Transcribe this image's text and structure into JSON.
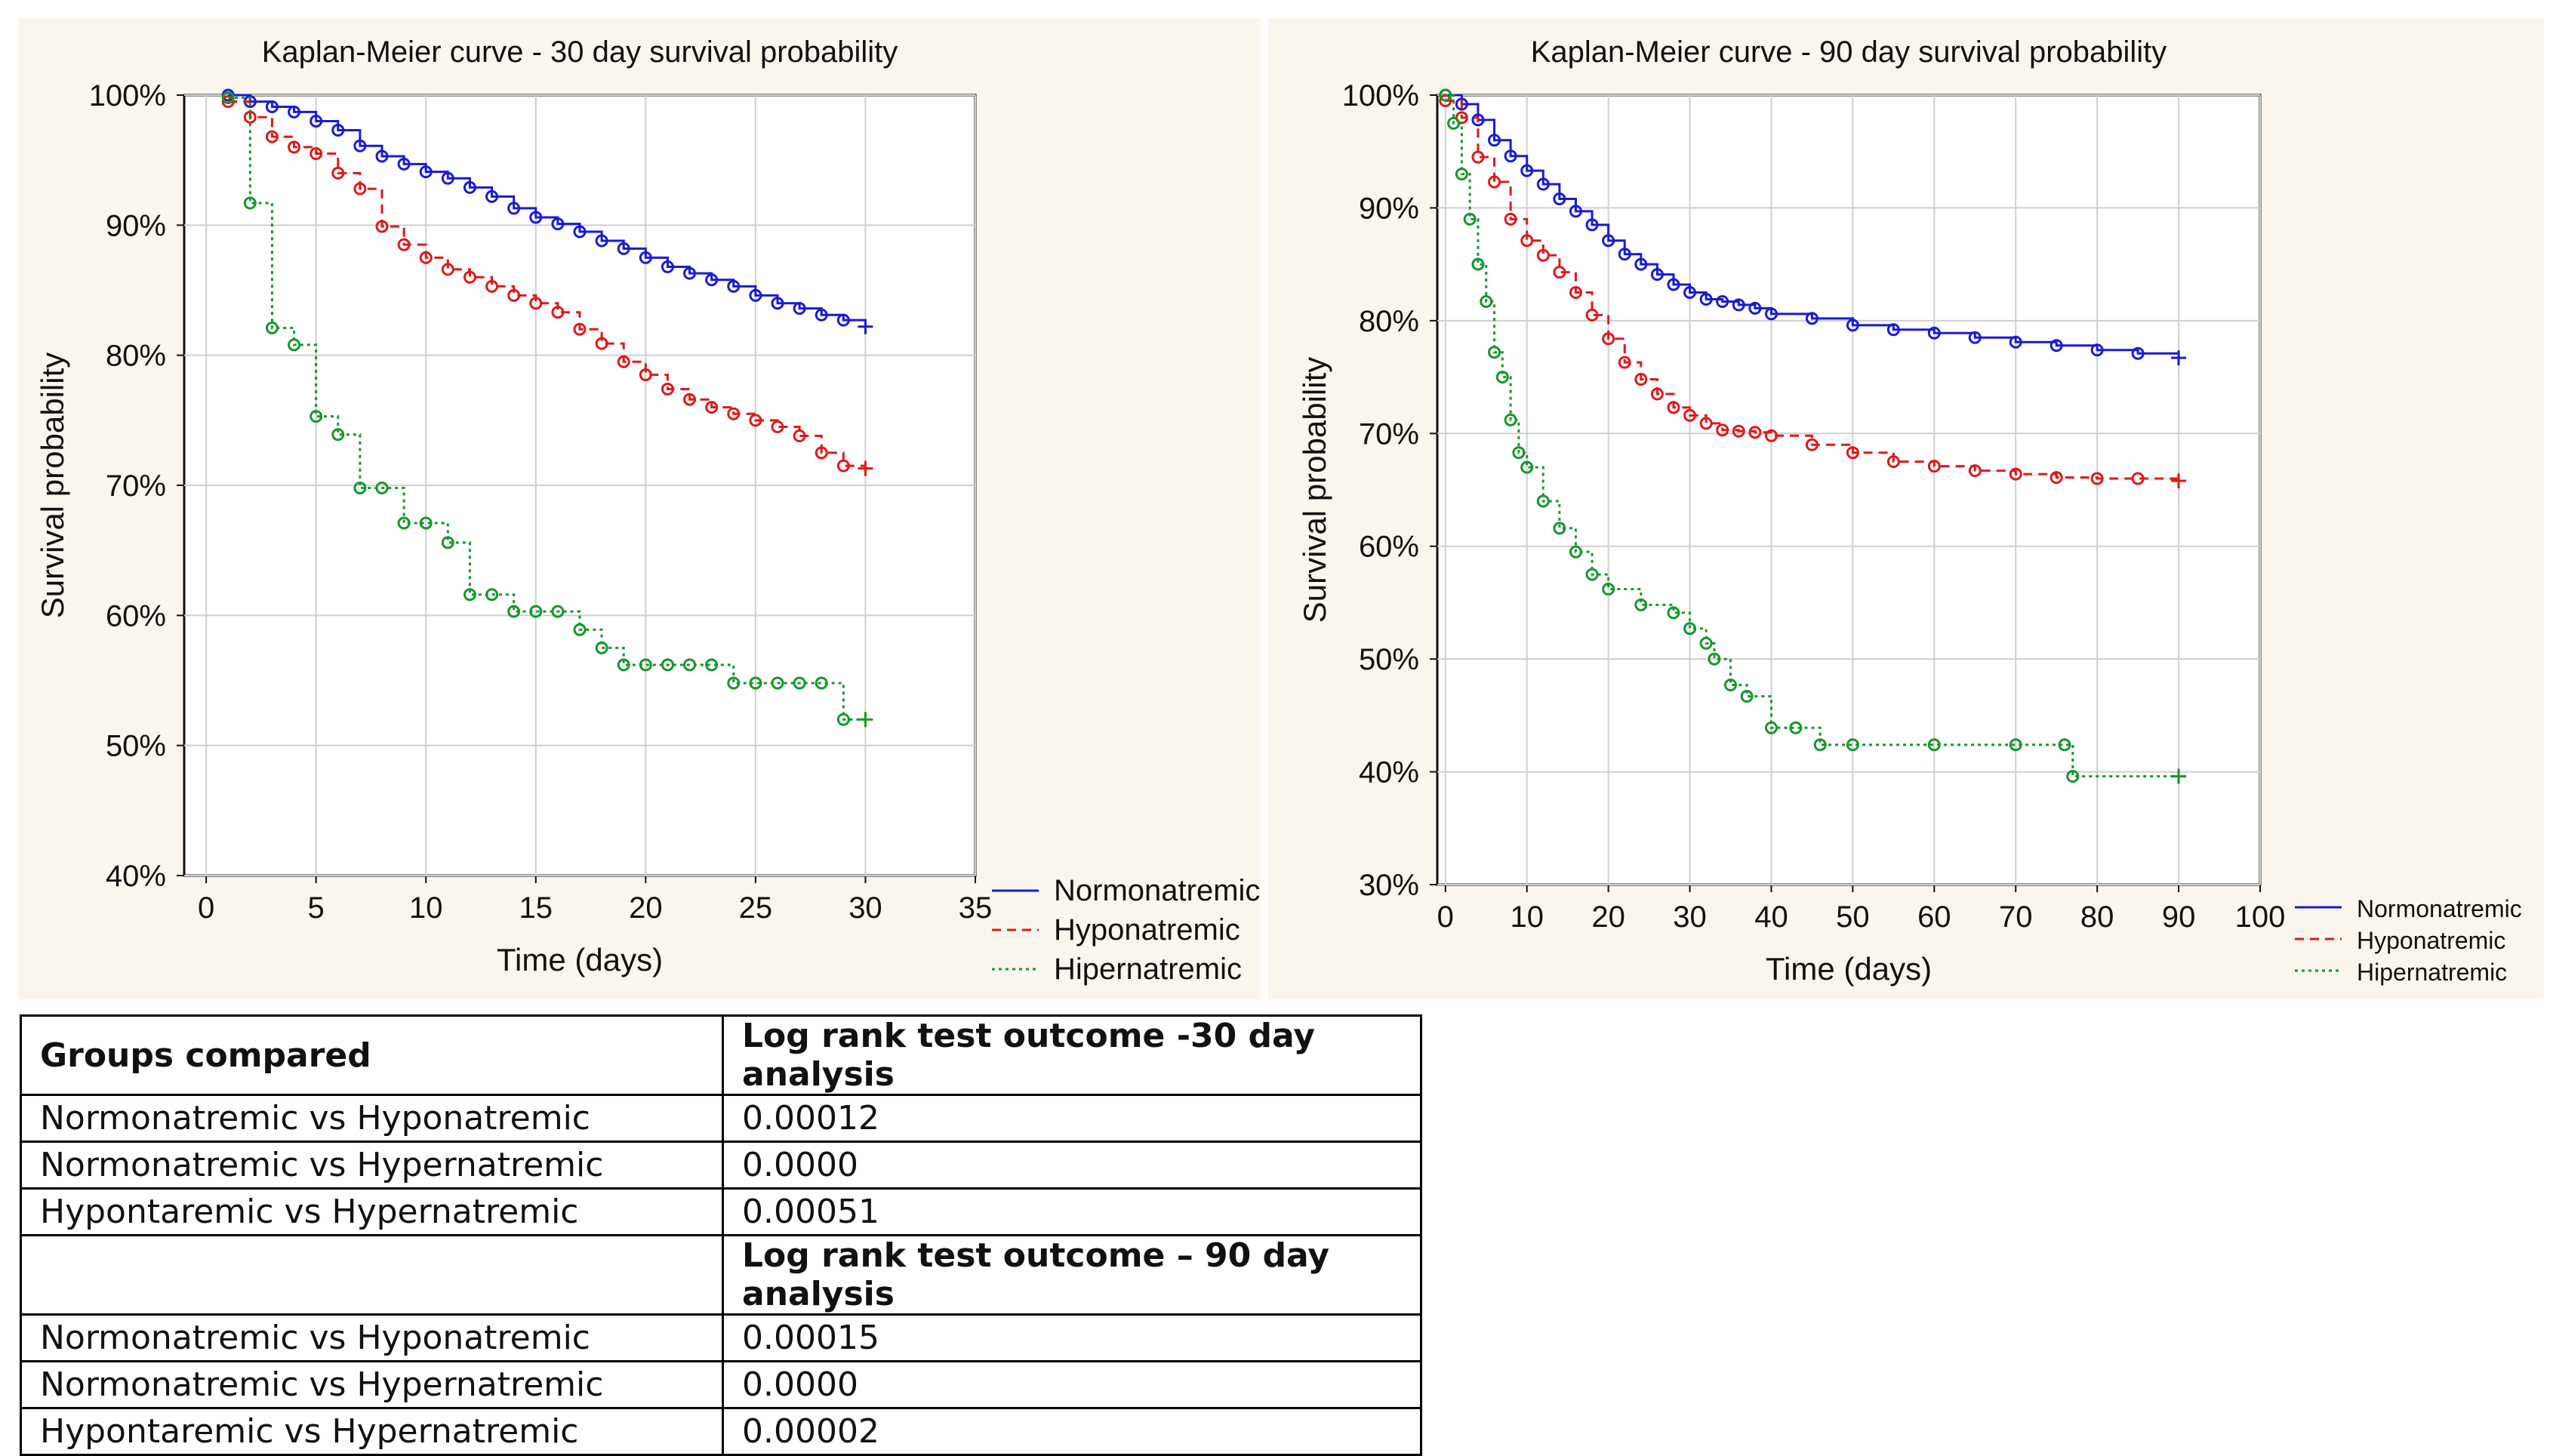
{
  "charts_bg": "#faf6ee",
  "colors": {
    "Normonatremic": "#1a1ad6",
    "Hyponatremic": "#e01818",
    "Hipernatremic": "#15972b"
  },
  "chart_data": [
    {
      "type": "line",
      "subtype": "kaplan-meier",
      "title": "Kaplan-Meier curve - 30 day survival probability",
      "xlabel": "Time (days)",
      "ylabel": "Survival probability",
      "xlim": [
        -1,
        35
      ],
      "ylim": [
        40,
        100
      ],
      "xticks": [
        "0",
        "5",
        "10",
        "15",
        "20",
        "25",
        "30",
        "35"
      ],
      "yticks": [
        "40%",
        "50%",
        "60%",
        "70%",
        "80%",
        "90%",
        "100%"
      ],
      "grid": true,
      "legend_position": "bottom-right outside",
      "series": [
        {
          "name": "Normonatremic",
          "style": "solid",
          "x": [
            1,
            2,
            3,
            4,
            5,
            6,
            7,
            8,
            9,
            10,
            11,
            12,
            13,
            14,
            15,
            16,
            17,
            18,
            19,
            20,
            21,
            22,
            23,
            24,
            25,
            26,
            27,
            28,
            29,
            30
          ],
          "y": [
            100,
            99.5,
            99.1,
            98.7,
            98,
            97.3,
            96.1,
            95.3,
            94.7,
            94.1,
            93.6,
            92.9,
            92.2,
            91.3,
            90.6,
            90.1,
            89.5,
            88.8,
            88.2,
            87.5,
            86.8,
            86.3,
            85.8,
            85.3,
            84.6,
            84.0,
            83.6,
            83.1,
            82.7,
            82.2
          ]
        },
        {
          "name": "Hyponatremic",
          "style": "dashed",
          "x": [
            1,
            2,
            3,
            4,
            5,
            6,
            7,
            8,
            9,
            10,
            11,
            12,
            13,
            14,
            15,
            16,
            17,
            18,
            19,
            20,
            21,
            22,
            23,
            24,
            25,
            26,
            27,
            28,
            29,
            30
          ],
          "y": [
            99.5,
            98.3,
            96.8,
            96,
            95.5,
            94,
            92.8,
            89.9,
            88.5,
            87.5,
            86.6,
            86,
            85.3,
            84.6,
            84,
            83.3,
            82,
            80.9,
            79.5,
            78.5,
            77.4,
            76.6,
            76,
            75.5,
            75,
            74.5,
            73.8,
            72.5,
            71.5,
            71.3
          ]
        },
        {
          "name": "Hipernatremic",
          "style": "dotted",
          "x": [
            1,
            2,
            3,
            4,
            5,
            6,
            7,
            8,
            9,
            10,
            11,
            12,
            13,
            14,
            15,
            16,
            17,
            18,
            19,
            20,
            21,
            22,
            23,
            24,
            25,
            26,
            27,
            28,
            29,
            30
          ],
          "y": [
            99.8,
            91.7,
            82.1,
            80.8,
            75.3,
            73.9,
            69.8,
            69.8,
            67.1,
            67.1,
            65.6,
            61.6,
            61.6,
            60.3,
            60.3,
            60.3,
            58.9,
            57.5,
            56.2,
            56.2,
            56.2,
            56.2,
            56.2,
            54.8,
            54.8,
            54.8,
            54.8,
            54.8,
            52,
            52
          ]
        }
      ]
    },
    {
      "type": "line",
      "subtype": "kaplan-meier",
      "title": "Kaplan-Meier curve - 90 day survival probability",
      "xlabel": "Time (days)",
      "ylabel": "Survival probability",
      "xlim": [
        -1,
        100
      ],
      "ylim": [
        30,
        100
      ],
      "xticks": [
        "0",
        "10",
        "20",
        "30",
        "40",
        "50",
        "60",
        "70",
        "80",
        "90",
        "100"
      ],
      "yticks": [
        "30%",
        "40%",
        "50%",
        "60%",
        "70%",
        "80%",
        "90%",
        "100%"
      ],
      "grid": true,
      "legend_position": "bottom-right outside",
      "series": [
        {
          "name": "Normonatremic",
          "style": "solid",
          "x": [
            0,
            2,
            4,
            6,
            8,
            10,
            12,
            14,
            16,
            18,
            20,
            22,
            24,
            26,
            28,
            30,
            32,
            34,
            36,
            38,
            40,
            45,
            50,
            55,
            60,
            65,
            70,
            75,
            80,
            85,
            90
          ],
          "y": [
            100,
            99.2,
            97.8,
            96,
            94.6,
            93.3,
            92.1,
            90.8,
            89.7,
            88.5,
            87.1,
            85.9,
            85,
            84.1,
            83.2,
            82.5,
            81.9,
            81.7,
            81.4,
            81.1,
            80.6,
            80.2,
            79.6,
            79.2,
            78.9,
            78.5,
            78.1,
            77.8,
            77.4,
            77.1,
            76.7
          ]
        },
        {
          "name": "Hyponatremic",
          "style": "dashed",
          "x": [
            0,
            2,
            4,
            6,
            8,
            10,
            12,
            14,
            16,
            18,
            20,
            22,
            24,
            26,
            28,
            30,
            32,
            34,
            36,
            38,
            40,
            45,
            50,
            55,
            60,
            65,
            70,
            75,
            80,
            85,
            90
          ],
          "y": [
            99.5,
            98,
            94.5,
            92.3,
            89,
            87.1,
            85.8,
            84.3,
            82.5,
            80.5,
            78.4,
            76.3,
            74.8,
            73.5,
            72.3,
            71.6,
            70.9,
            70.3,
            70.2,
            70.1,
            69.8,
            69,
            68.3,
            67.5,
            67.1,
            66.7,
            66.4,
            66.1,
            66,
            66,
            65.8
          ]
        },
        {
          "name": "Hipernatremic",
          "style": "dotted",
          "x": [
            0,
            1,
            2,
            3,
            4,
            5,
            6,
            7,
            8,
            9,
            10,
            12,
            14,
            16,
            18,
            20,
            24,
            28,
            30,
            32,
            33,
            35,
            37,
            40,
            43,
            46,
            50,
            60,
            70,
            76,
            77,
            90
          ],
          "y": [
            100,
            97.5,
            93,
            89,
            85,
            81.7,
            77.2,
            75,
            71.2,
            68.3,
            67,
            64,
            61.6,
            59.5,
            57.5,
            56.2,
            54.8,
            54.1,
            52.7,
            51.4,
            50.0,
            47.7,
            46.7,
            43.9,
            43.9,
            42.4,
            42.4,
            42.4,
            42.4,
            42.4,
            39.6,
            39.6
          ]
        }
      ]
    }
  ],
  "table": {
    "header1": [
      "Groups compared",
      "Log rank test outcome -30 day analysis"
    ],
    "rows30": [
      [
        "Normonatremic vs Hyponatremic",
        "0.00012"
      ],
      [
        "Normonatremic vs Hypernatremic",
        "0.0000"
      ],
      [
        "Hypontaremic vs Hypernatremic",
        "0.00051"
      ]
    ],
    "header2": [
      "",
      "Log rank test outcome – 90 day analysis"
    ],
    "rows90": [
      [
        "Normonatremic vs Hyponatremic",
        "0.00015"
      ],
      [
        "Normonatremic vs Hypernatremic",
        "0.0000"
      ],
      [
        "Hypontaremic vs Hypernatremic",
        "0.00002"
      ]
    ]
  }
}
